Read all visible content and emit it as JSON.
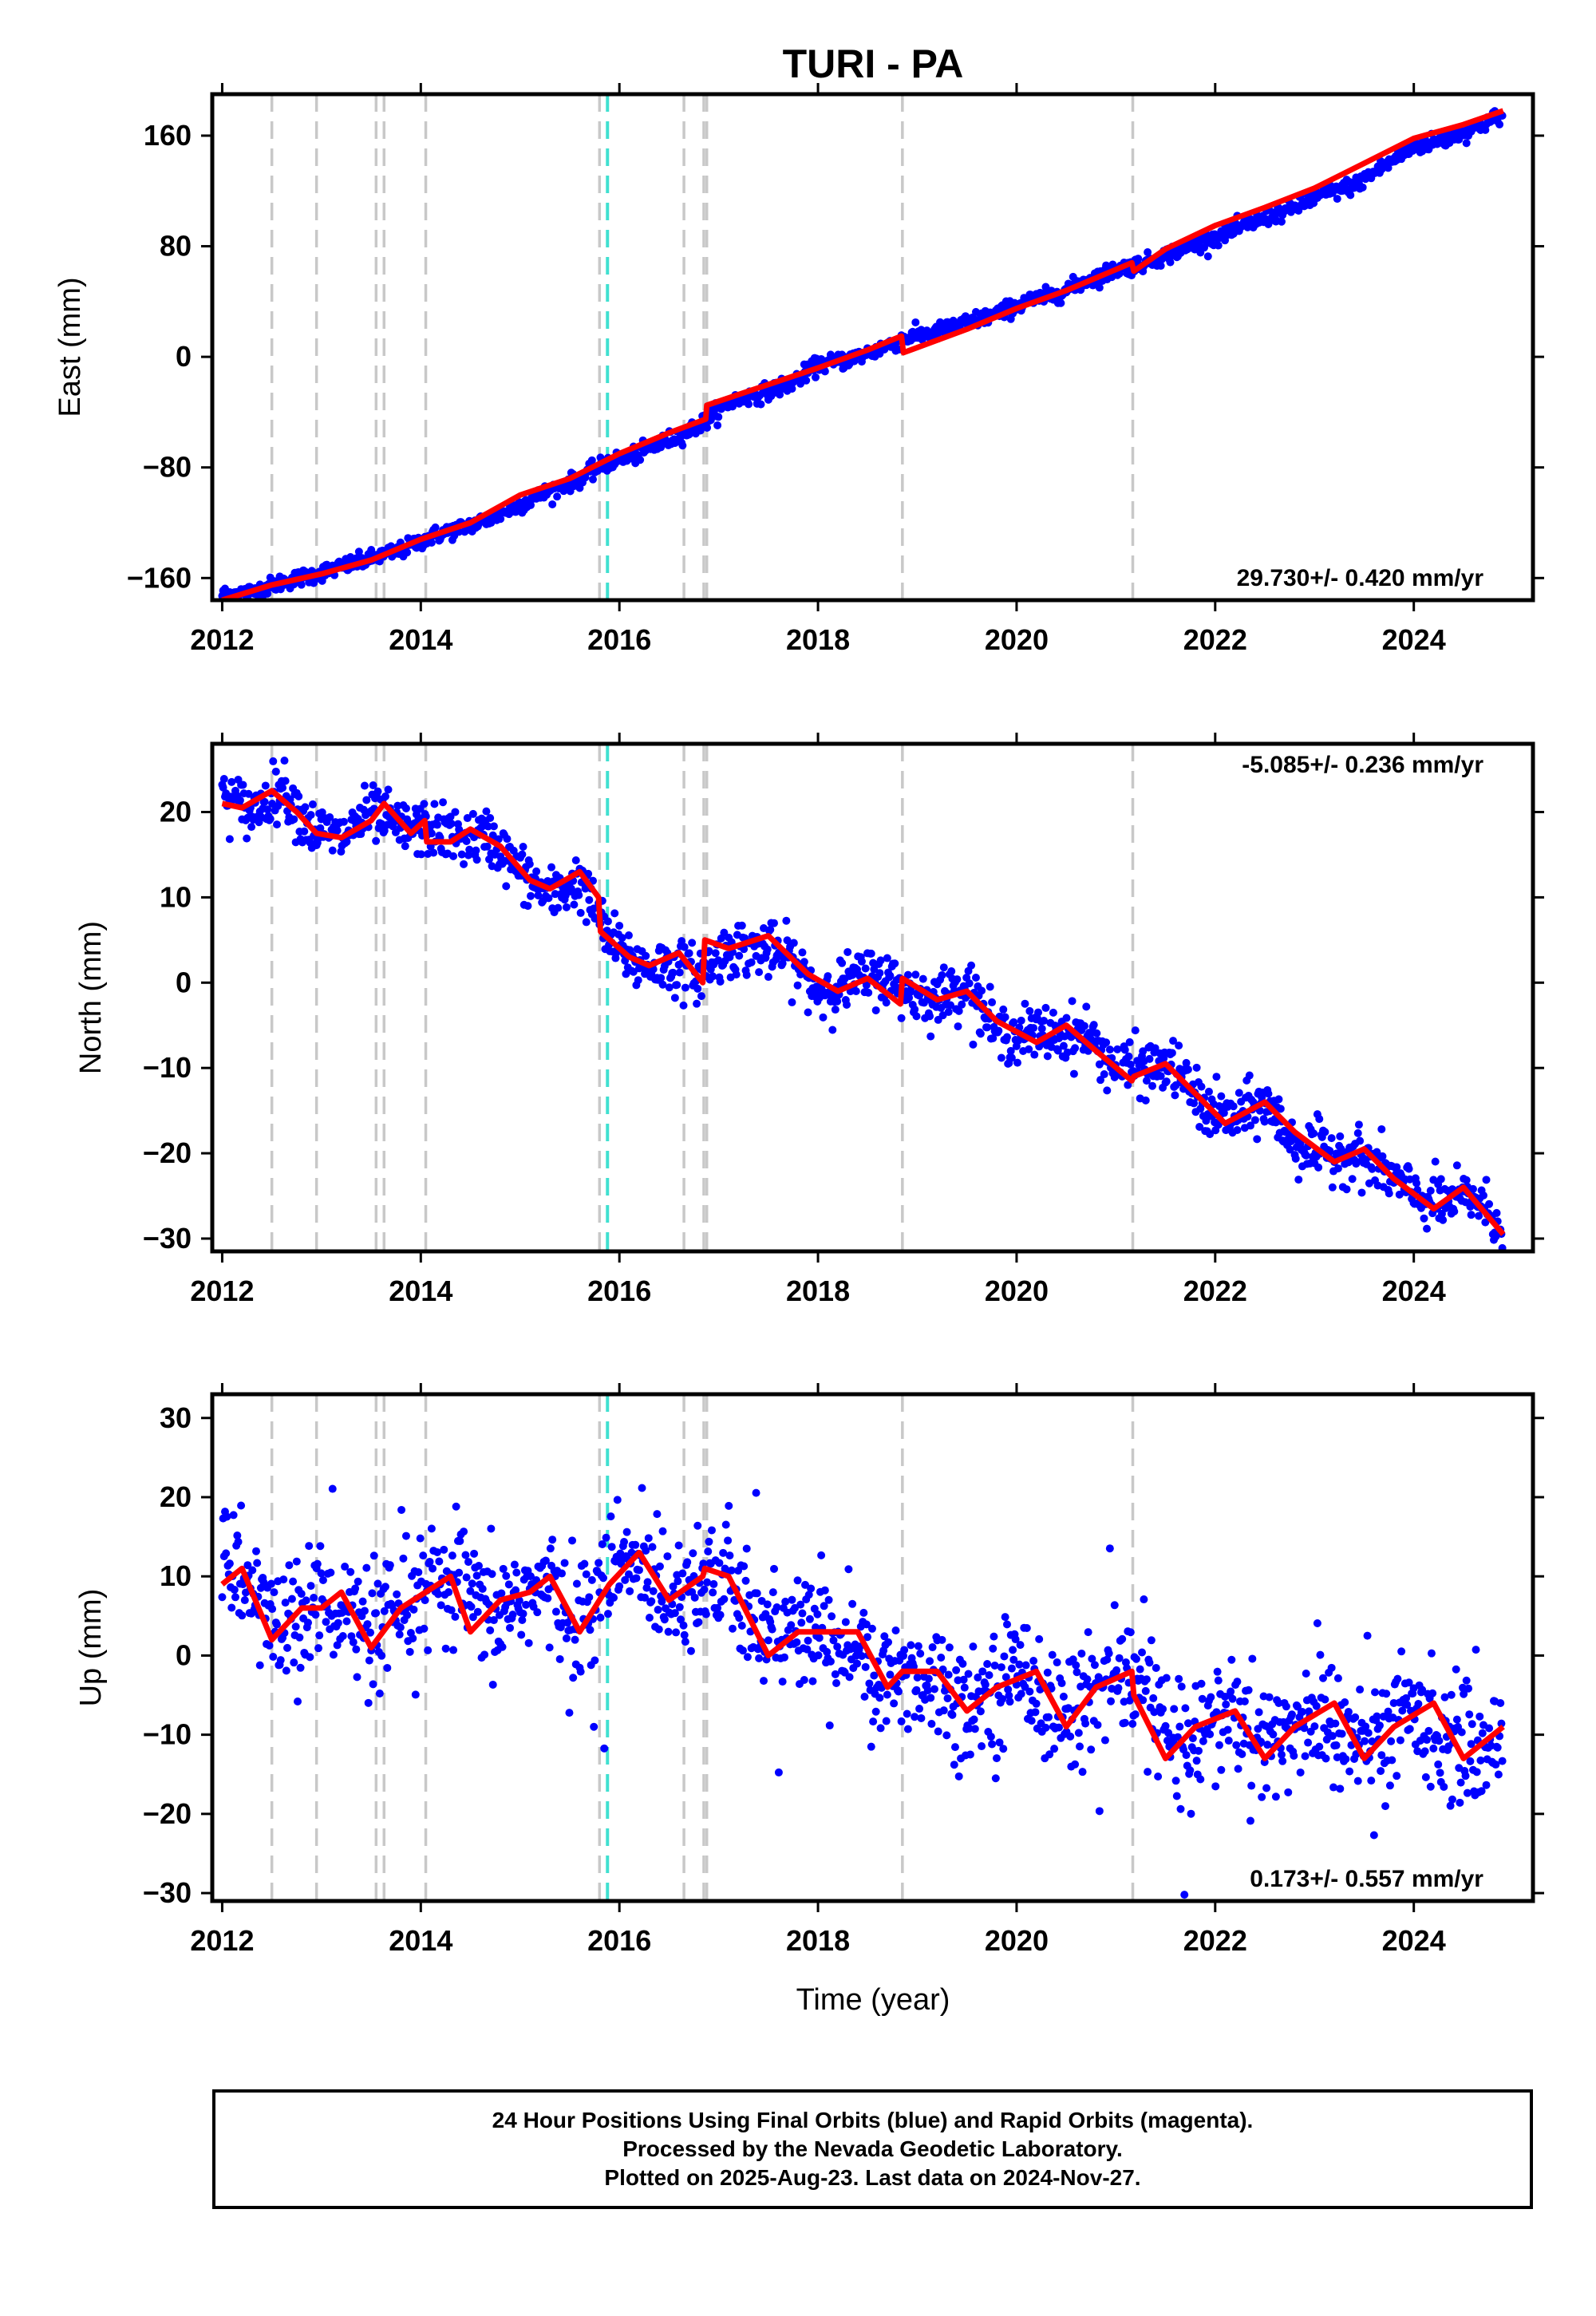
{
  "title": "TURI - PA",
  "x_label": "Time (year)",
  "colors": {
    "data": "#0000ff",
    "model": "#ff0000",
    "event_line": "#c8c8c8",
    "special_line": "#40e0d0",
    "frame": "#000000"
  },
  "footer": {
    "line1": "24 Hour Positions Using Final Orbits (blue) and Rapid Orbits (magenta).",
    "line2": "Processed by the Nevada Geodetic Laboratory.",
    "line3": "Plotted on 2025-Aug-23. Last data on 2024-Nov-27."
  },
  "chart_data": [
    {
      "type": "scatter",
      "panel": "east",
      "ylabel": "East (mm)",
      "xlim": [
        2011.9,
        2025.2
      ],
      "ylim": [
        -176,
        190
      ],
      "xticks": [
        2012,
        2014,
        2016,
        2018,
        2020,
        2022,
        2024
      ],
      "yticks": [
        160,
        80,
        0,
        -80,
        -160
      ],
      "ytick_labels": [
        "160",
        "80",
        "0",
        "−80",
        "−160"
      ],
      "rate_label": "29.730+/- 0.420 mm/yr",
      "rate_label_position": "bottom-right",
      "event_lines": [
        2012.5,
        2012.95,
        2013.55,
        2013.63,
        2014.05,
        2015.8,
        2016.65,
        2016.85,
        2016.88,
        2018.85,
        2021.17
      ],
      "special_lines": [
        2015.88
      ],
      "model": {
        "x": [
          2012.0,
          2012.5,
          2013.0,
          2013.5,
          2014.0,
          2014.5,
          2015.0,
          2015.5,
          2016.0,
          2016.5,
          2016.87,
          2016.88,
          2017.5,
          2018.0,
          2018.5,
          2018.84,
          2018.86,
          2019.5,
          2020.0,
          2020.5,
          2021.16,
          2021.18,
          2021.5,
          2022.0,
          2022.5,
          2023.0,
          2023.5,
          2024.0,
          2024.5,
          2024.9
        ],
        "y": [
          -176,
          -165,
          -157,
          -147,
          -132,
          -120,
          -100,
          -88,
          -70,
          -55,
          -45,
          -35,
          -20,
          -8,
          5,
          15,
          3,
          20,
          35,
          48,
          68,
          62,
          78,
          95,
          108,
          122,
          140,
          158,
          168,
          178
        ]
      },
      "observed": {
        "x": [
          2012.0,
          2012.3,
          2012.6,
          2012.9,
          2013.2,
          2013.5,
          2013.8,
          2014.1,
          2014.4,
          2014.7,
          2015.0,
          2015.3,
          2015.6,
          2015.9,
          2016.2,
          2016.5,
          2016.8,
          2017.1,
          2017.4,
          2017.7,
          2018.0,
          2018.3,
          2018.6,
          2018.9,
          2019.2,
          2019.5,
          2019.8,
          2020.1,
          2020.4,
          2020.7,
          2021.0,
          2021.3,
          2021.6,
          2021.9,
          2022.2,
          2022.5,
          2022.8,
          2023.1,
          2023.4,
          2023.7,
          2024.0,
          2024.3,
          2024.6,
          2024.9
        ],
        "y": [
          -172,
          -170,
          -163,
          -158,
          -152,
          -146,
          -140,
          -130,
          -124,
          -117,
          -107,
          -97,
          -88,
          -76,
          -70,
          -60,
          -50,
          -33,
          -27,
          -20,
          -6,
          -2,
          5,
          14,
          18,
          25,
          31,
          40,
          45,
          55,
          63,
          68,
          76,
          84,
          92,
          100,
          108,
          118,
          124,
          138,
          152,
          157,
          165,
          175
        ]
      }
    },
    {
      "type": "scatter",
      "panel": "north",
      "ylabel": "North (mm)",
      "xlim": [
        2011.9,
        2025.2
      ],
      "ylim": [
        -31.5,
        28
      ],
      "xticks": [
        2012,
        2014,
        2016,
        2018,
        2020,
        2022,
        2024
      ],
      "yticks": [
        20,
        10,
        0,
        -10,
        -20,
        -30
      ],
      "ytick_labels": [
        "20",
        "10",
        "0",
        "−10",
        "−20",
        "−30"
      ],
      "rate_label": "-5.085+/- 0.236 mm/yr",
      "rate_label_position": "top-right",
      "event_lines": [
        2012.5,
        2012.95,
        2013.55,
        2013.63,
        2014.05,
        2015.8,
        2016.65,
        2016.85,
        2016.88,
        2018.85,
        2021.17
      ],
      "special_lines": [
        2015.88
      ],
      "model": {
        "x": [
          2012.0,
          2012.2,
          2012.5,
          2012.75,
          2012.95,
          2013.2,
          2013.5,
          2013.63,
          2013.9,
          2014.04,
          2014.06,
          2014.3,
          2014.5,
          2014.8,
          2015.1,
          2015.3,
          2015.6,
          2015.79,
          2015.81,
          2016.1,
          2016.3,
          2016.6,
          2016.84,
          2016.86,
          2017.1,
          2017.5,
          2017.9,
          2018.2,
          2018.5,
          2018.83,
          2018.85,
          2019.2,
          2019.5,
          2019.8,
          2020.2,
          2020.5,
          2020.8,
          2021.16,
          2021.18,
          2021.5,
          2021.8,
          2022.1,
          2022.5,
          2022.8,
          2023.2,
          2023.5,
          2023.8,
          2024.2,
          2024.5,
          2024.9
        ],
        "y": [
          21,
          20.5,
          22.5,
          20,
          17.5,
          17,
          19,
          21,
          17.5,
          19,
          16.5,
          16.5,
          18,
          16,
          12,
          11,
          13,
          10,
          6,
          3,
          2,
          3.5,
          0,
          5,
          4,
          5.5,
          1,
          -1,
          0.5,
          -2.5,
          0.5,
          -2,
          -1,
          -4.5,
          -7,
          -5,
          -8,
          -11.5,
          -11,
          -9.5,
          -13,
          -16.5,
          -14,
          -17.5,
          -21,
          -19.5,
          -23,
          -26.5,
          -24,
          -29.5
        ]
      },
      "observed": {
        "x": [
          2012.0,
          2012.3,
          2012.6,
          2012.9,
          2013.2,
          2013.5,
          2013.8,
          2014.1,
          2014.4,
          2014.7,
          2015.0,
          2015.3,
          2015.6,
          2015.9,
          2016.2,
          2016.5,
          2016.8,
          2017.1,
          2017.4,
          2017.7,
          2018.0,
          2018.3,
          2018.6,
          2018.9,
          2019.2,
          2019.5,
          2019.8,
          2020.1,
          2020.4,
          2020.7,
          2021.0,
          2021.3,
          2021.6,
          2021.9,
          2022.2,
          2022.5,
          2022.8,
          2023.1,
          2023.4,
          2023.7,
          2024.0,
          2024.3,
          2024.6,
          2024.9
        ],
        "y": [
          22,
          20,
          23,
          18,
          17,
          20,
          18,
          18,
          17,
          17,
          13,
          10,
          12,
          5,
          2,
          2,
          1,
          4,
          4,
          3,
          -1,
          0,
          1,
          -1,
          -2,
          0,
          -6,
          -6,
          -6,
          -6,
          -10,
          -10,
          -10,
          -15,
          -16,
          -14,
          -19,
          -20,
          -20,
          -22,
          -25,
          -26,
          -25,
          -29
        ]
      }
    },
    {
      "type": "scatter",
      "panel": "up",
      "ylabel": "Up (mm)",
      "xlabel": "Time (year)",
      "xlim": [
        2011.9,
        2025.2
      ],
      "ylim": [
        -31,
        33
      ],
      "xticks": [
        2012,
        2014,
        2016,
        2018,
        2020,
        2022,
        2024
      ],
      "yticks": [
        30,
        20,
        10,
        0,
        -10,
        -20,
        -30
      ],
      "ytick_labels": [
        "30",
        "20",
        "10",
        "0",
        "−10",
        "−20",
        "−30"
      ],
      "rate_label": "0.173+/- 0.557 mm/yr",
      "rate_label_position": "bottom-right",
      "event_lines": [
        2012.5,
        2012.95,
        2013.55,
        2013.63,
        2014.05,
        2015.8,
        2016.65,
        2016.85,
        2016.88,
        2018.85,
        2021.17
      ],
      "special_lines": [
        2015.88
      ],
      "model": {
        "x": [
          2012.0,
          2012.2,
          2012.5,
          2012.8,
          2013.0,
          2013.2,
          2013.5,
          2013.8,
          2014.05,
          2014.3,
          2014.5,
          2014.8,
          2015.1,
          2015.3,
          2015.6,
          2015.9,
          2016.2,
          2016.5,
          2016.84,
          2016.86,
          2017.1,
          2017.5,
          2017.8,
          2018.1,
          2018.4,
          2018.7,
          2018.85,
          2019.2,
          2019.5,
          2019.8,
          2020.2,
          2020.5,
          2020.8,
          2021.16,
          2021.18,
          2021.5,
          2021.8,
          2022.2,
          2022.5,
          2022.8,
          2023.2,
          2023.5,
          2023.8,
          2024.2,
          2024.5,
          2024.9
        ],
        "y": [
          9,
          11,
          2,
          6,
          6,
          8,
          1,
          6,
          8,
          10,
          3,
          7,
          8,
          10,
          3,
          9,
          13,
          7,
          10,
          11,
          10,
          0,
          3,
          3,
          3,
          -4,
          -2,
          -2,
          -7,
          -4,
          -2,
          -9,
          -4,
          -2,
          -5,
          -13,
          -9,
          -7,
          -13,
          -9,
          -6,
          -13,
          -9,
          -6,
          -13,
          -9
        ]
      },
      "observed": {
        "x": [
          2012.0,
          2012.3,
          2012.6,
          2012.9,
          2013.2,
          2013.5,
          2013.8,
          2014.1,
          2014.4,
          2014.7,
          2015.0,
          2015.3,
          2015.6,
          2015.9,
          2016.2,
          2016.5,
          2016.8,
          2017.1,
          2017.4,
          2017.7,
          2018.0,
          2018.3,
          2018.6,
          2018.9,
          2019.2,
          2019.5,
          2019.8,
          2020.1,
          2020.4,
          2020.7,
          2021.0,
          2021.3,
          2021.6,
          2021.9,
          2022.2,
          2022.5,
          2022.8,
          2023.1,
          2023.4,
          2023.7,
          2024.0,
          2024.3,
          2024.6,
          2024.9
        ],
        "y": [
          12,
          8,
          3,
          7,
          6,
          2,
          5,
          8,
          9,
          4,
          8,
          8,
          4,
          10,
          12,
          8,
          10,
          9,
          3,
          3,
          3,
          2,
          -4,
          -2,
          -3,
          -6,
          -4,
          -1,
          -8,
          -5,
          -3,
          -4,
          -12,
          -9,
          -7,
          -12,
          -9,
          -7,
          -12,
          -10,
          -7,
          -10,
          -12,
          -10
        ]
      }
    }
  ]
}
